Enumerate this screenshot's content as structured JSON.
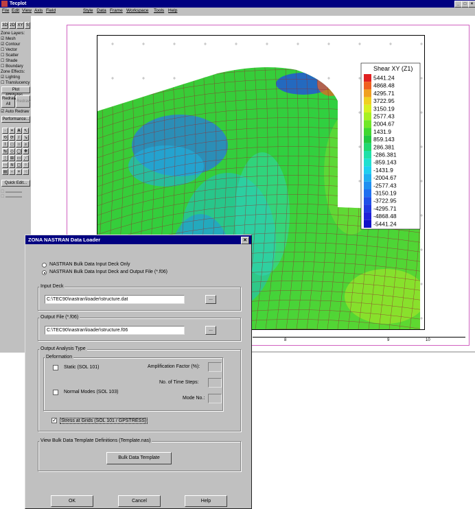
{
  "tecplot": {
    "title": "Tecplot",
    "menu": [
      "File",
      "Edit",
      "View",
      "Axis",
      "Field",
      "Style",
      "Data",
      "Frame",
      "Workspace",
      "Tools",
      "Help"
    ],
    "dim_buttons": [
      "3D",
      "2D",
      "XY",
      "S"
    ],
    "zone_layers_label": "Zone Layers:",
    "layers": [
      {
        "label": "Mesh",
        "checked": true
      },
      {
        "label": "Contour",
        "checked": true
      },
      {
        "label": "Vector",
        "checked": false
      },
      {
        "label": "Scatter",
        "checked": false
      },
      {
        "label": "Shade",
        "checked": false
      },
      {
        "label": "Boundary",
        "checked": false
      }
    ],
    "zone_effects_label": "Zone Effects:",
    "effects": [
      {
        "label": "Lighting",
        "checked": true
      },
      {
        "label": "Translucency",
        "checked": false
      }
    ],
    "plot_attributes": "Plot Attributes...",
    "redraw_all": "Redraw All",
    "redraw": "Redraw",
    "auto_redraw": "Auto Redraw",
    "performance": "Performance...",
    "quick_edit": "Quick Edit...",
    "legend": {
      "title": "Shear XY (Z1)",
      "levels": [
        "5441.24",
        "4868.48",
        "4295.71",
        "3722.95",
        "3150.19",
        "2577.43",
        "2004.67",
        "1431.9",
        "859.143",
        "286.381",
        "-286.381",
        "-859.143",
        "-1431.9",
        "-2004.67",
        "-2577.43",
        "-3150.19",
        "-3722.95",
        "-4295.71",
        "-4868.48",
        "-5441.24"
      ],
      "colors": [
        "#e02020",
        "#f06020",
        "#f0a020",
        "#f0d020",
        "#d8f020",
        "#a8f020",
        "#70e828",
        "#40d830",
        "#20c840",
        "#20d870",
        "#20e0a8",
        "#20e0d0",
        "#20d0f0",
        "#20b0f0",
        "#2090f0",
        "#2070f0",
        "#2050e8",
        "#2038e0",
        "#2020d8",
        "#1010c8"
      ]
    },
    "axis_ticks": [
      "8",
      "9",
      "10"
    ]
  },
  "dialog": {
    "title": "ZONA NASTRAN Data Loader",
    "close_glyph": "✕",
    "options": [
      {
        "label": "NASTRAN Bulk Data Input Deck Only",
        "selected": false
      },
      {
        "label": "NASTRAN Bulk Data Input Deck and Output File (*.f06)",
        "selected": true
      }
    ],
    "input_deck_label": "Input Deck",
    "input_deck_value": "C:\\TEC90\\nastran\\loader\\structure.dat",
    "output_file_label": "Output File (*.f06)",
    "output_file_value": "C:\\TEC90\\nastran\\loader\\structure.f06",
    "browse_label": "...",
    "analysis_label": "Output Analysis Type",
    "deformation_label": "Deformation",
    "static_label": "Static (SOL 101)",
    "amplification_label": "Amplification Factor (%):",
    "time_steps_label": "No. of Time Steps:",
    "normal_modes_label": "Normal Modes (SOL 103)",
    "mode_no_label": "Mode No.:",
    "stress_label": "Stress at Grids (SOL 101 / GPSTRESS)",
    "template_group_label": "View Bulk Data Template Definitions (Template.nas)",
    "template_button": "Bulk Data Template",
    "ok": "OK",
    "cancel": "Cancel",
    "help": "Help"
  }
}
